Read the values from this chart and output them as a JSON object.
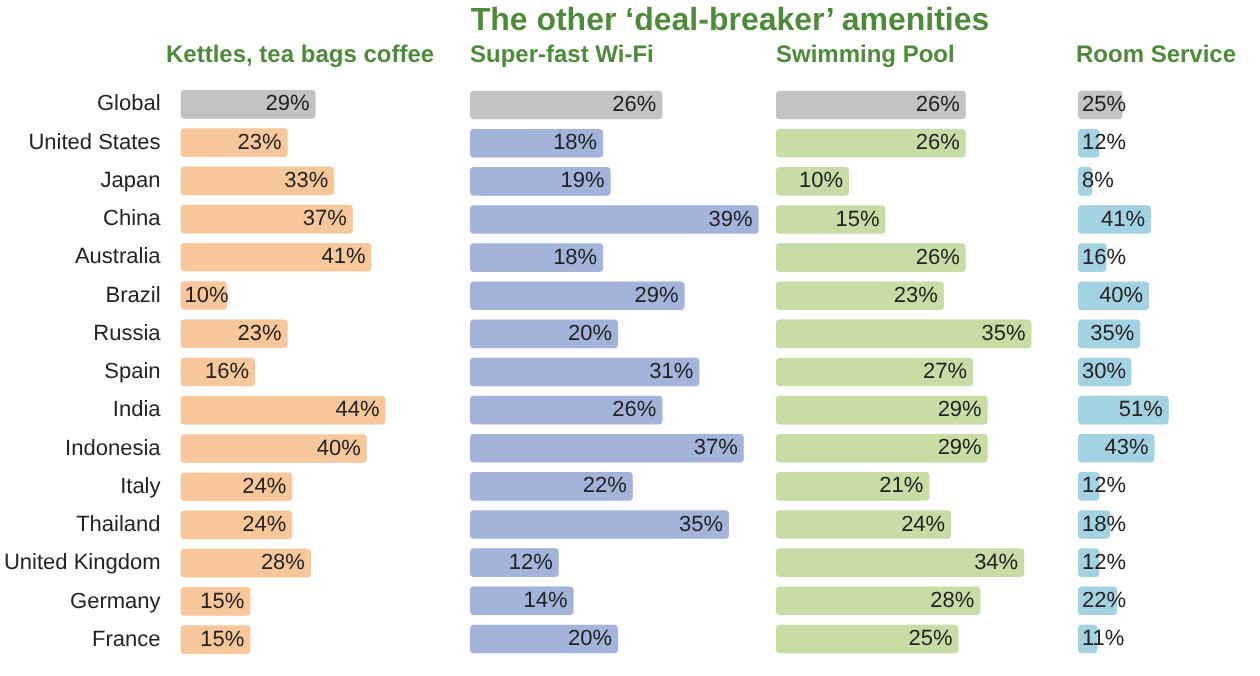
{
  "chart_data": [
    {
      "type": "bar",
      "orientation": "horizontal",
      "subtitle": "Kettles, tea bags coffee",
      "tick_labels": "y",
      "categories": [
        "Global",
        "United States",
        "Japan",
        "China",
        "Australia",
        "Brazil",
        "Russia",
        "Spain",
        "India",
        "Indonesia",
        "Italy",
        "Thailand",
        "United Kingdom",
        "Germany",
        "France"
      ],
      "values": [
        29,
        23,
        33,
        37,
        41,
        10,
        23,
        16,
        44,
        40,
        24,
        24,
        28,
        15,
        15
      ],
      "value_labels": [
        "29%",
        "23%",
        "33%",
        "37%",
        "41%",
        "10%",
        "23%",
        "16%",
        "44%",
        "40%",
        "24%",
        "24%",
        "28%",
        "15%",
        "15%"
      ],
      "colors": [
        "#c3c3c3",
        "#f8c79c",
        "#f8c79c",
        "#f8c79c",
        "#f8c79c",
        "#f8c79c",
        "#f8c79c",
        "#f8c79c",
        "#f8c79c",
        "#f8c79c",
        "#f8c79c",
        "#f8c79c",
        "#f8c79c",
        "#f8c79c",
        "#f8c79c"
      ]
    },
    {
      "type": "bar",
      "orientation": "horizontal",
      "title": "The other ‘deal-breaker’ amenities",
      "subtitle": "Super-fast Wi-Fi",
      "tick_labels": false,
      "categories": [
        null,
        null,
        null,
        null,
        null,
        null,
        null,
        null,
        null,
        null,
        null,
        null,
        null,
        null,
        null
      ],
      "values": [
        26,
        18,
        19,
        39,
        18,
        29,
        20,
        31,
        26,
        37,
        22,
        35,
        12,
        14,
        20
      ],
      "value_labels": [
        "26%",
        "18%",
        "19%",
        "39%",
        "18%",
        "29%",
        "20%",
        "31%",
        "26%",
        "37%",
        "22%",
        "35%",
        "12%",
        "14%",
        "20%"
      ],
      "colors": [
        "#c3c3c3",
        "#a3b3da",
        "#a3b3da",
        "#a3b3da",
        "#a3b3da",
        "#a3b3da",
        "#a3b3da",
        "#a3b3da",
        "#a3b3da",
        "#a3b3da",
        "#a3b3da",
        "#a3b3da",
        "#a3b3da",
        "#a3b3da",
        "#a3b3da"
      ]
    },
    {
      "type": "bar",
      "orientation": "horizontal",
      "subtitle": "Swimming Pool",
      "tick_labels": false,
      "categories": [
        null,
        null,
        null,
        null,
        null,
        null,
        null,
        null,
        null,
        null,
        null,
        null,
        null,
        null,
        null
      ],
      "values": [
        26,
        26,
        10,
        15,
        26,
        23,
        35,
        27,
        29,
        29,
        21,
        24,
        34,
        28,
        25
      ],
      "value_labels": [
        "26%",
        "26%",
        "10%",
        "15%",
        "26%",
        "23%",
        "35%",
        "27%",
        "29%",
        "29%",
        "21%",
        "24%",
        "34%",
        "28%",
        "25%"
      ],
      "colors": [
        "#c3c3c3",
        "#c7dda5",
        "#c7dda5",
        "#c7dda5",
        "#c7dda5",
        "#c7dda5",
        "#c7dda5",
        "#c7dda5",
        "#c7dda5",
        "#c7dda5",
        "#c7dda5",
        "#c7dda5",
        "#c7dda5",
        "#c7dda5",
        "#c7dda5"
      ]
    },
    {
      "type": "bar",
      "orientation": "horizontal",
      "subtitle": "Room Service",
      "tick_labels": false,
      "categories": [
        null,
        null,
        null,
        null,
        null,
        null,
        null,
        null,
        null,
        null,
        null,
        null,
        null,
        null,
        null
      ],
      "values": [
        25,
        12,
        8,
        41,
        16,
        40,
        35,
        30,
        51,
        43,
        12,
        18,
        12,
        22,
        11
      ],
      "value_labels": [
        "25%",
        "12%",
        "8%",
        "41%",
        "16%",
        "40%",
        "35%",
        "30%",
        "51%",
        "43%",
        "12%",
        "18%",
        "12%",
        "22%",
        "11%"
      ],
      "colors": [
        "#c3c3c3",
        "#a3d3e3",
        "#a3d3e3",
        "#a3d3e3",
        "#a3d3e3",
        "#a3d3e3",
        "#a3d3e3",
        "#a3d3e3",
        "#a3d3e3",
        "#a3d3e3",
        "#a3d3e3",
        "#a3d3e3",
        "#a3d3e3",
        "#a3d3e3",
        "#a3d3e3"
      ]
    }
  ]
}
